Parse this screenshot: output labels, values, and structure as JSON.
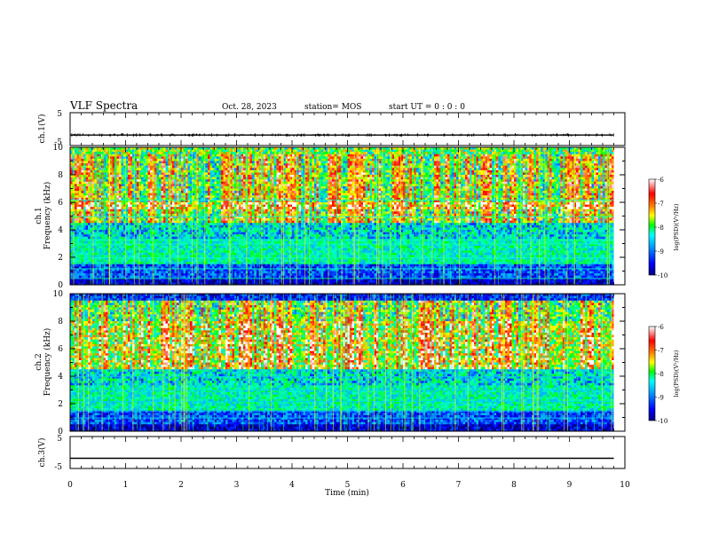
{
  "header": {
    "title": "VLF Spectra",
    "date": "Oct. 28, 2023",
    "station": "station= MOS",
    "start": "start  UT =   0 : 0  : 0"
  },
  "chart_data": [
    {
      "type": "line",
      "name": "ch1-voltage",
      "ylabel": "ch.1(V)",
      "ylim": [
        -5,
        5
      ],
      "yticks": [
        "5",
        "-5"
      ],
      "x": [
        0,
        1,
        2,
        3,
        4,
        5,
        6,
        7,
        8,
        9,
        9.8
      ],
      "values": [
        -1.8,
        -1.8,
        -1.8,
        -1.8,
        -1.8,
        -1.8,
        -1.8,
        -1.8,
        -1.8,
        -1.8,
        -1.8
      ]
    },
    {
      "type": "heatmap",
      "name": "ch1-spectrogram",
      "ylabel": "ch.1\nFrequency (kHz)",
      "ylim": [
        0,
        10
      ],
      "yticks": [
        "0",
        "2",
        "4",
        "6",
        "8",
        "10"
      ],
      "xlim": [
        0,
        10
      ],
      "data_end_min": 9.8,
      "colorbar": {
        "label": "log(PSD)(V²/Hz)",
        "range": [
          -10,
          -6
        ],
        "ticks": [
          "-6",
          "-7",
          "-8",
          "-9",
          "-10"
        ]
      }
    },
    {
      "type": "heatmap",
      "name": "ch2-spectrogram",
      "ylabel": "ch.2\nFrequency (kHz)",
      "ylim": [
        0,
        10
      ],
      "yticks": [
        "0",
        "2",
        "4",
        "6",
        "8",
        "10"
      ],
      "xlim": [
        0,
        10
      ],
      "data_end_min": 9.8,
      "colorbar": {
        "label": "log(PSD)(V²/Hz)",
        "range": [
          -10,
          -6
        ],
        "ticks": [
          "-6",
          "-7",
          "-8",
          "-9",
          "-10"
        ]
      }
    },
    {
      "type": "line",
      "name": "ch3-voltage",
      "ylabel": "ch.3(V)",
      "ylim": [
        -5,
        5
      ],
      "yticks": [
        "5",
        "-5"
      ],
      "x": [
        0,
        9.8
      ],
      "values": [
        -1.8,
        -1.8
      ]
    }
  ],
  "xaxis": {
    "label": "Time  (min)",
    "ticks": [
      "0",
      "1",
      "2",
      "3",
      "4",
      "5",
      "6",
      "7",
      "8",
      "9",
      "10"
    ],
    "range": [
      0,
      10
    ]
  },
  "colors": {
    "scale": [
      "#000040",
      "#0000ff",
      "#00b0ff",
      "#00ffb0",
      "#00ff00",
      "#ffff00",
      "#ff8000",
      "#ff0000",
      "#ffffff"
    ]
  }
}
